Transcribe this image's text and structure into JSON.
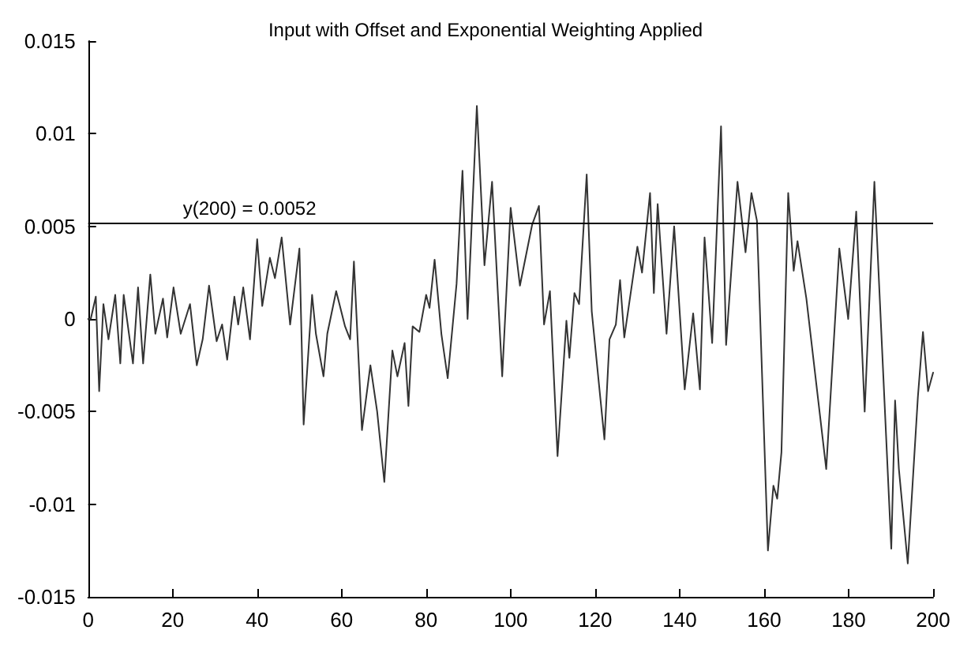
{
  "chart_data": {
    "type": "line",
    "title": "Input with Offset and Exponential Weighting Applied",
    "x": [
      0,
      0.6,
      1.8,
      2.6,
      3.6,
      4.8,
      6.4,
      7.6,
      8.4,
      10.6,
      11.8,
      13,
      14.7,
      15.9,
      17.7,
      18.7,
      20.2,
      21.9,
      24.1,
      25.7,
      27.1,
      28.6,
      30.4,
      31.7,
      32.9,
      34.6,
      35.5,
      36.7,
      38.3,
      40,
      41.2,
      43,
      44.2,
      45.8,
      47.8,
      50,
      51,
      53,
      53.9,
      55.7,
      56.6,
      58.7,
      60.8,
      62,
      62.9,
      64.8,
      66.8,
      68.4,
      70.1,
      72,
      73.2,
      74.9,
      75.8,
      76.8,
      78.4,
      80,
      80.8,
      82,
      83.6,
      85.1,
      87.2,
      88.6,
      89.8,
      92,
      93.8,
      95.6,
      98,
      100,
      102.2,
      105.1,
      106.7,
      107.9,
      109.3,
      111.1,
      113.2,
      113.9,
      115.1,
      116.2,
      118,
      119.2,
      122.2,
      123.4,
      124.9,
      125.9,
      126.9,
      130,
      131.1,
      133,
      133.9,
      134.8,
      136.9,
      138.7,
      141.2,
      143.2,
      144.8,
      145.9,
      147.7,
      149.8,
      151,
      153.7,
      155.6,
      157,
      158.3,
      160.9,
      162.2,
      163.1,
      164.1,
      165.7,
      167,
      167.9,
      170,
      174.7,
      177.8,
      179.9,
      181.8,
      183.8,
      186.1,
      190.1,
      191,
      191.9,
      194,
      196.4,
      197.6,
      198.8,
      200
    ],
    "series": [
      {
        "color": "#333333",
        "values": [
          0,
          0,
          0.0012,
          -0.0039,
          0.0008,
          -0.0011,
          0.0013,
          -0.0024,
          0.0013,
          -0.0024,
          0.0017,
          -0.0024,
          0.0024,
          -0.0008,
          0.0011,
          -0.001,
          0.0017,
          -0.0008,
          0.0008,
          -0.0025,
          -0.0011,
          0.0018,
          -0.0012,
          -0.0003,
          -0.0022,
          0.0012,
          -0.0003,
          0.0017,
          -0.0011,
          0.0043,
          0.0007,
          0.0033,
          0.0022,
          0.0044,
          -0.0003,
          0.0038,
          -0.0057,
          0.0013,
          -0.0008,
          -0.0031,
          -0.0008,
          0.0015,
          -0.0004,
          -0.0011,
          0.0031,
          -0.006,
          -0.0025,
          -0.005,
          -0.0088,
          -0.0017,
          -0.0031,
          -0.0013,
          -0.0047,
          -0.0004,
          -0.0007,
          0.0013,
          0.0006,
          0.0032,
          -0.0008,
          -0.0032,
          0.0019,
          0.008,
          0,
          0.0115,
          0.0029,
          0.0074,
          -0.0031,
          0.006,
          0.0018,
          0.0051,
          0.0061,
          -0.0003,
          0.0015,
          -0.0074,
          -0.0001,
          -0.0021,
          0.0014,
          0.0008,
          0.0078,
          0.0004,
          -0.0065,
          -0.0011,
          -0.0003,
          0.0021,
          -0.001,
          0.0039,
          0.0025,
          0.0068,
          0.0014,
          0.0062,
          -0.0008,
          0.005,
          -0.0038,
          0.0003,
          -0.0038,
          0.0044,
          -0.0013,
          0.0104,
          -0.0014,
          0.0074,
          0.0036,
          0.0068,
          0.0053,
          -0.0125,
          -0.009,
          -0.0097,
          -0.0072,
          0.0068,
          0.0026,
          0.0042,
          0.0011,
          -0.0081,
          0.0038,
          0,
          0.0058,
          -0.005,
          0.0074,
          -0.0124,
          -0.0044,
          -0.0081,
          -0.0132,
          -0.0042,
          -0.0007,
          -0.0039,
          -0.0029
        ]
      }
    ],
    "xlim": [
      0,
      200
    ],
    "xticks": [
      0,
      20,
      40,
      60,
      80,
      100,
      120,
      140,
      160,
      180,
      200
    ],
    "ylim": [
      -0.015,
      0.015
    ],
    "yticks": [
      -0.015,
      -0.01,
      -0.005,
      0,
      0.005,
      0.01,
      0.015
    ],
    "ref_lines": [
      {
        "axis": "y",
        "value": 0.0052,
        "label": "y(200) = 0.0052",
        "color": "#000000"
      }
    ],
    "marker": "none",
    "line_style": "solid"
  }
}
